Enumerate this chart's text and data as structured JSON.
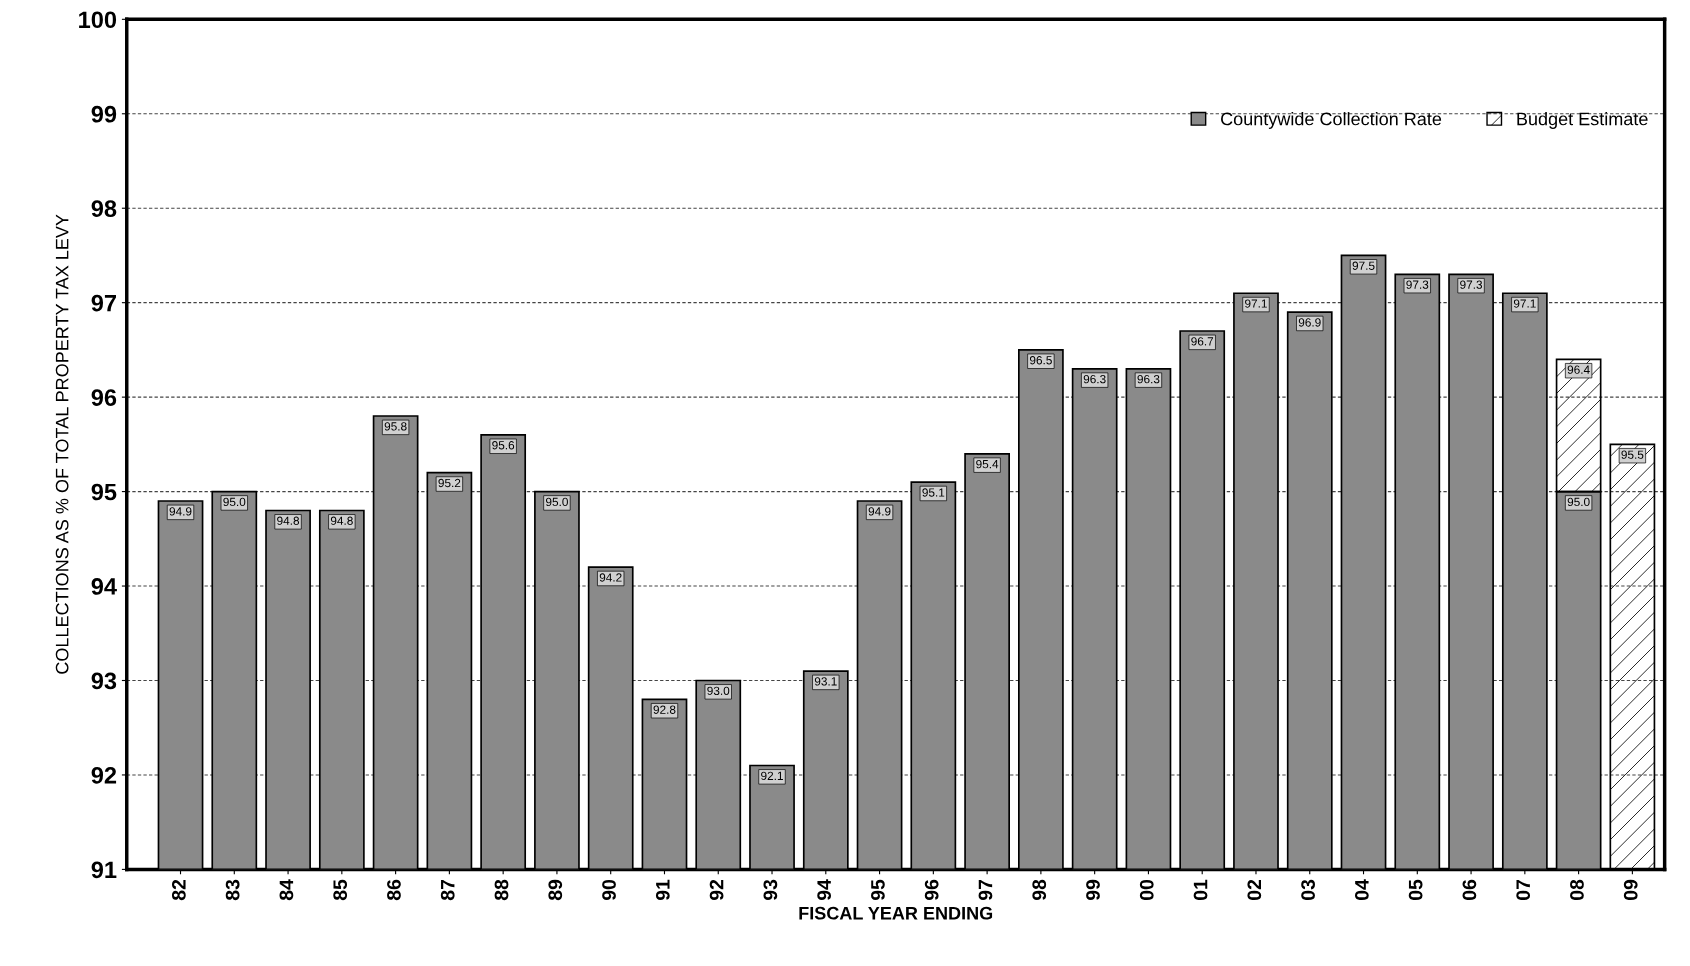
{
  "chart_data": {
    "type": "bar",
    "xlabel": "FISCAL YEAR ENDING",
    "ylabel": "COLLECTIONS AS % OF TOTAL PROPERTY TAX LEVY",
    "categories": [
      "82",
      "83",
      "84",
      "85",
      "86",
      "87",
      "88",
      "89",
      "90",
      "91",
      "92",
      "93",
      "94",
      "95",
      "96",
      "97",
      "98",
      "99",
      "00",
      "01",
      "02",
      "03",
      "04",
      "05",
      "06",
      "07",
      "08",
      "09"
    ],
    "series": [
      {
        "name": "Countywide Collection Rate",
        "color": "#8a8a8a",
        "values": [
          94.9,
          95.0,
          94.8,
          94.8,
          95.8,
          95.2,
          95.6,
          95.0,
          94.2,
          92.8,
          93.0,
          92.1,
          93.1,
          94.9,
          95.1,
          95.4,
          96.5,
          96.3,
          96.3,
          96.7,
          97.1,
          96.9,
          97.5,
          97.3,
          97.3,
          97.1,
          95.0,
          null
        ],
        "value_labels": [
          "94.9",
          "95.0",
          "94.8",
          "94.8",
          "95.8",
          "95.2",
          "95.6",
          "95.0",
          "94.2",
          "92.8",
          "93.0",
          "92.1",
          "93.1",
          "94.9",
          "95.1",
          "95.4",
          "96.5",
          "96.3",
          "96.3",
          "96.7",
          "97.1",
          "96.9",
          "97.5",
          "97.3",
          "97.3",
          "97.1",
          "95.0",
          null
        ]
      },
      {
        "name": "Budget Estimate",
        "color": "#000000",
        "values": [
          null,
          null,
          null,
          null,
          null,
          null,
          null,
          null,
          null,
          null,
          null,
          null,
          null,
          null,
          null,
          null,
          null,
          null,
          null,
          null,
          null,
          null,
          null,
          null,
          null,
          null,
          1.4,
          4.5
        ],
        "base": [
          null,
          null,
          null,
          null,
          null,
          null,
          null,
          null,
          null,
          null,
          null,
          null,
          null,
          null,
          null,
          null,
          null,
          null,
          null,
          null,
          null,
          null,
          null,
          null,
          null,
          null,
          95.0,
          91
        ],
        "value_labels": [
          null,
          null,
          null,
          null,
          null,
          null,
          null,
          null,
          null,
          null,
          null,
          null,
          null,
          null,
          null,
          null,
          null,
          null,
          null,
          null,
          null,
          null,
          null,
          null,
          null,
          null,
          "96.4",
          "95.5"
        ]
      }
    ],
    "ylim": [
      91,
      100
    ],
    "yticks": [
      91,
      92,
      93,
      94,
      95,
      96,
      97,
      98,
      99,
      100
    ],
    "grid": "y",
    "legend": "top right"
  }
}
